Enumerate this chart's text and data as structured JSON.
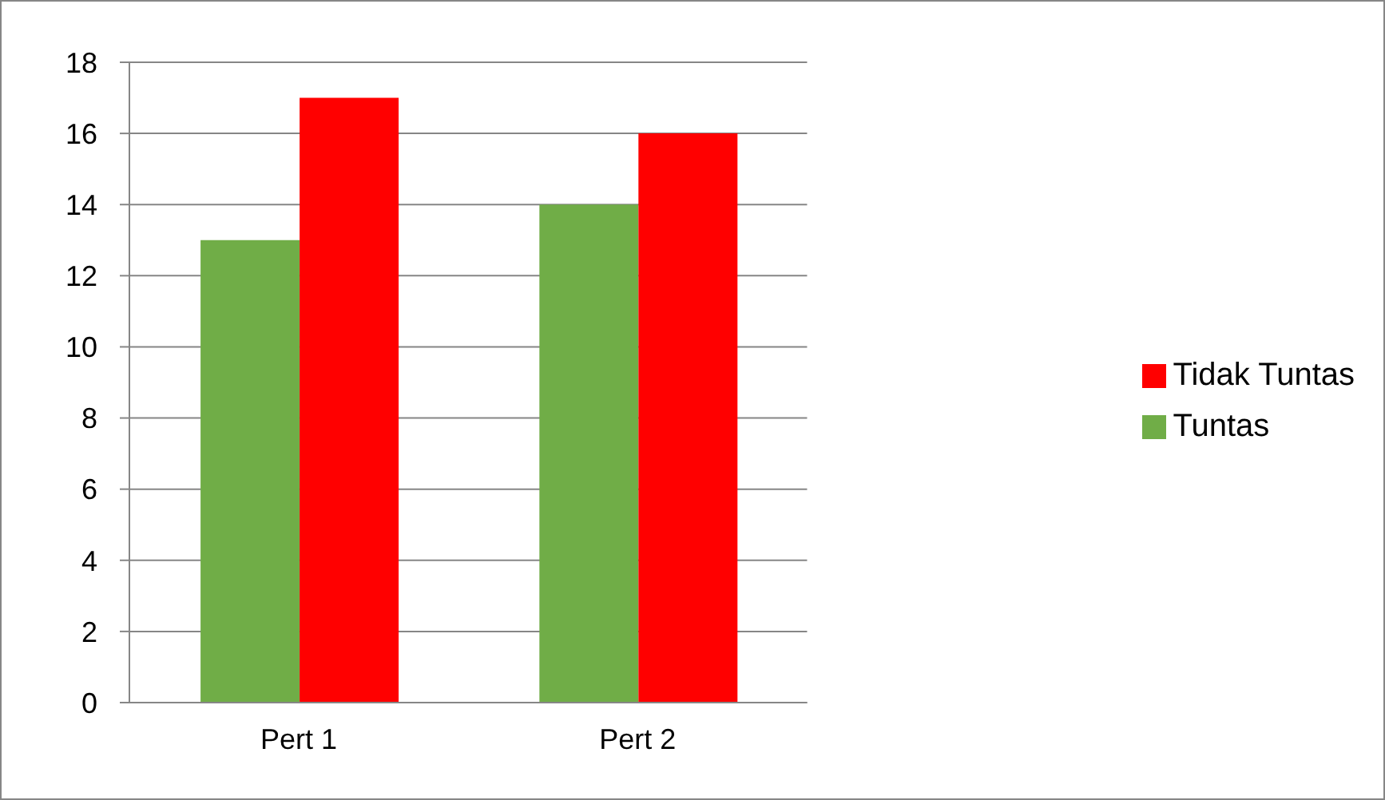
{
  "chart_data": {
    "type": "bar",
    "categories": [
      "Pert 1",
      "Pert 2"
    ],
    "series": [
      {
        "name": "Tuntas",
        "color": "#70ad47",
        "values": [
          13,
          14
        ]
      },
      {
        "name": "Tidak Tuntas",
        "color": "#ff0000",
        "values": [
          17,
          16
        ]
      }
    ],
    "ylim": [
      0,
      18
    ],
    "yticks": [
      0,
      2,
      4,
      6,
      8,
      10,
      12,
      14,
      16,
      18
    ],
    "grid": "y",
    "legend": "right"
  }
}
